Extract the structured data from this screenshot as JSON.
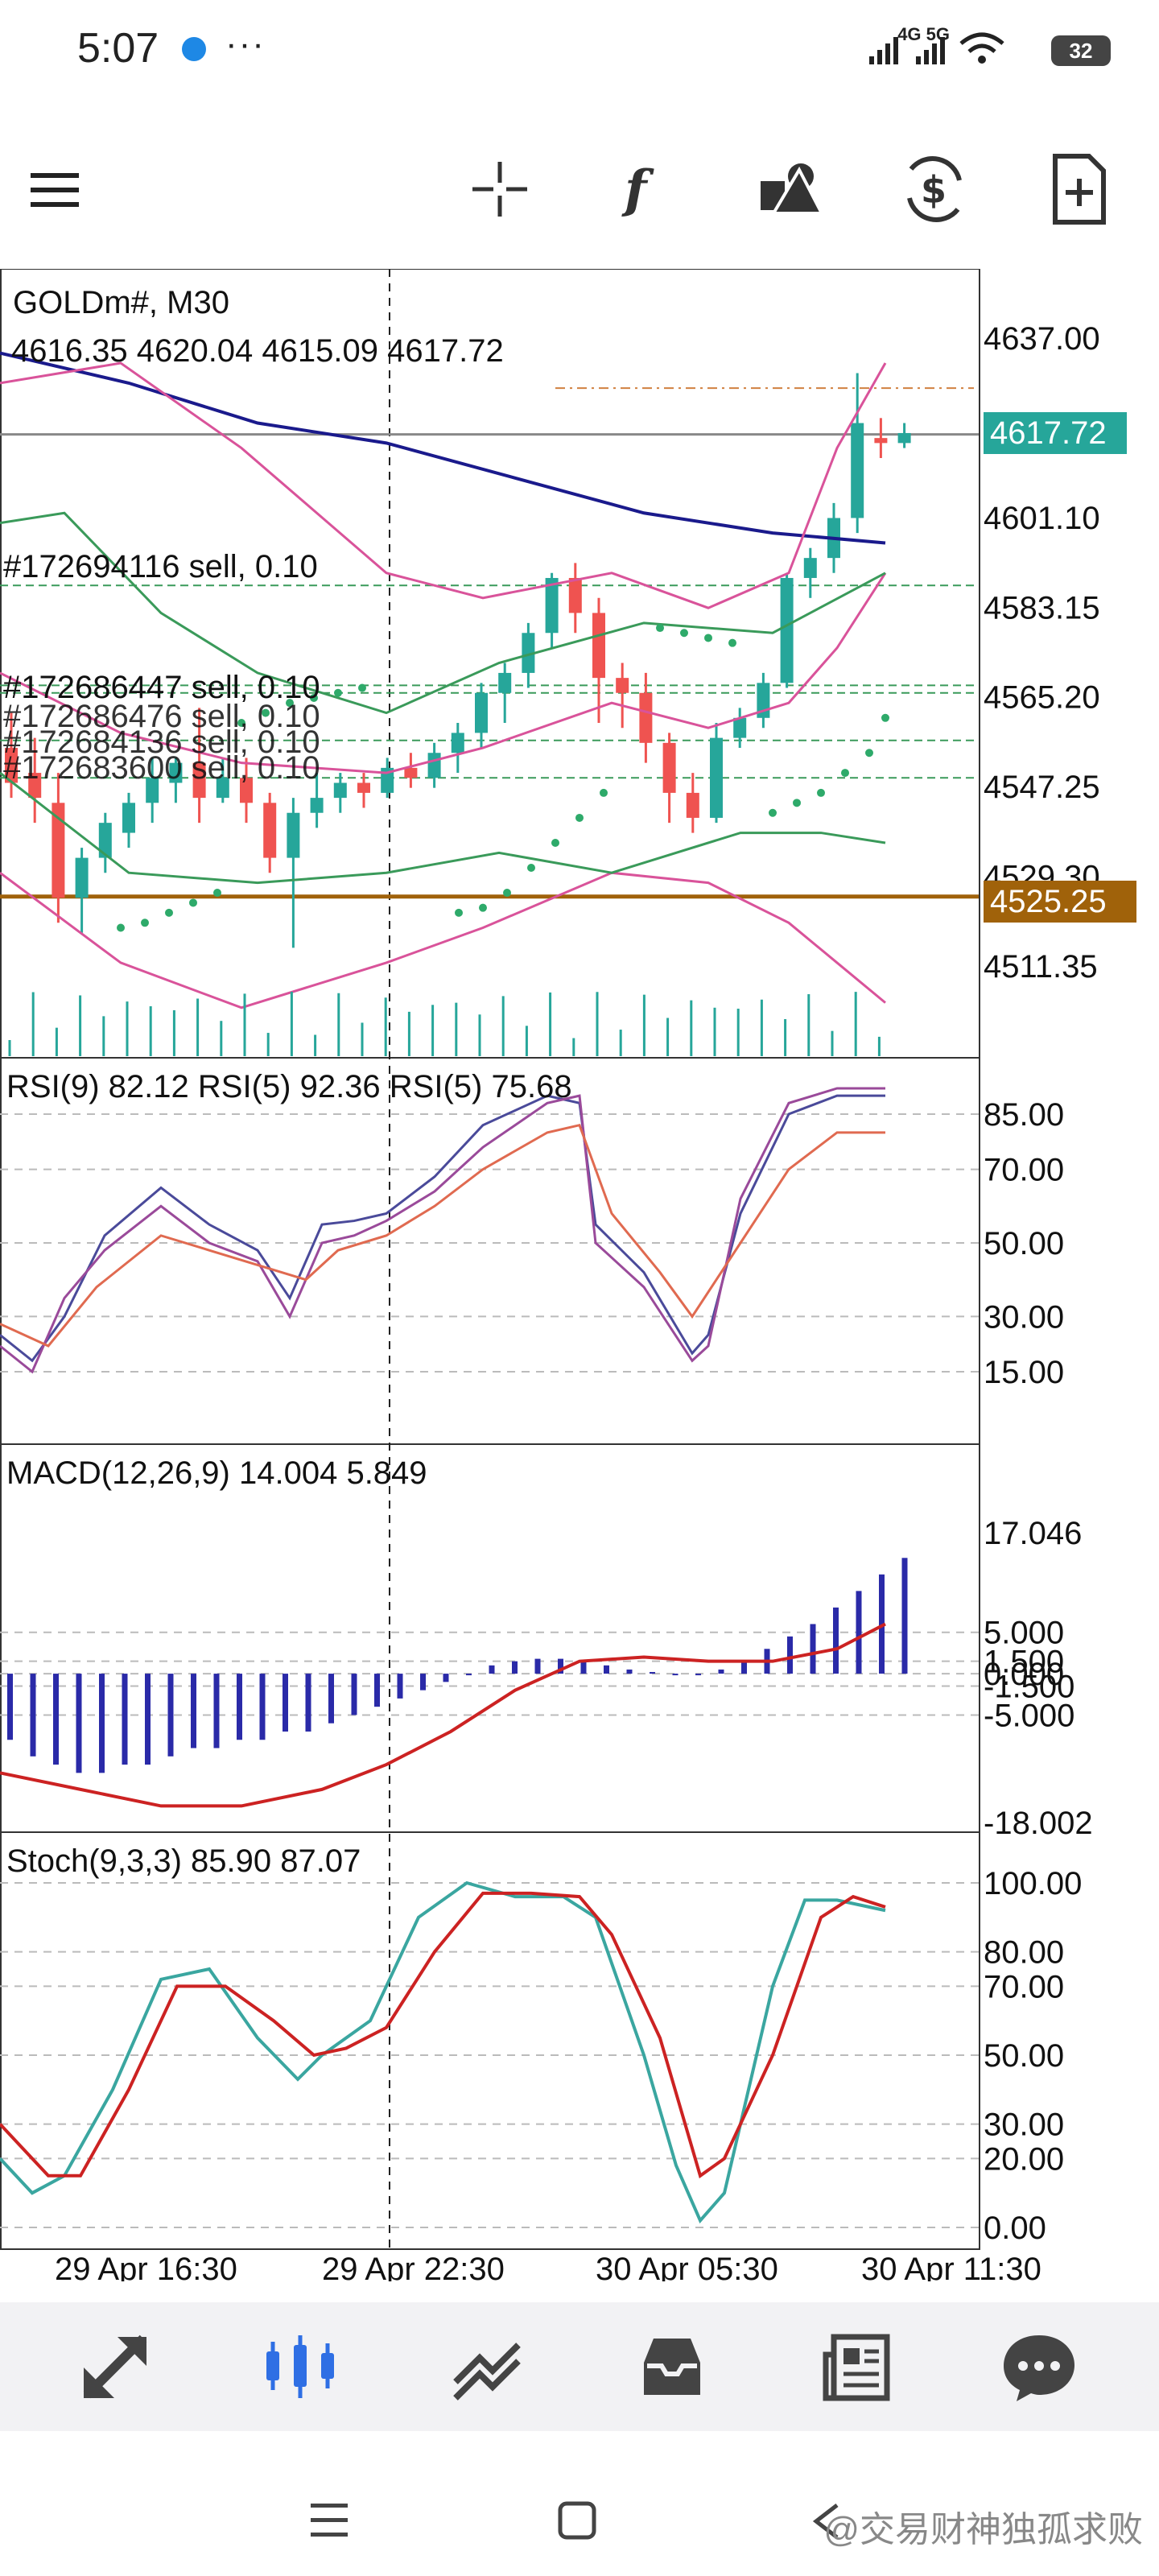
{
  "status_bar": {
    "time": "5:07",
    "network": "4G 5G",
    "battery": "32"
  },
  "toolbar": {
    "icons": [
      "menu-icon",
      "crosshair-icon",
      "indicators-icon",
      "objects-icon",
      "trade-icon",
      "new-order-icon"
    ]
  },
  "chart": {
    "symbol_line": "GOLDm#, M30",
    "ohlc_line": "4616.35 4620.04 4615.09 4617.72",
    "current_price": "4617.72",
    "line_price": "4525.25",
    "price_ticks": [
      "4637.00",
      "4601.10",
      "4583.15",
      "4565.20",
      "4547.25",
      "4529.30",
      "4511.35"
    ],
    "orders": [
      "#172694116 sell, 0.10",
      "#172686447 sell, 0.10",
      "#172686476 sell, 0.10",
      "#172684136 sell, 0.10",
      "#172683600 sell, 0.10"
    ],
    "time_labels": [
      "29 Apr 16:30",
      "29 Apr 22:30",
      "30 Apr 05:30",
      "30 Apr 11:30"
    ]
  },
  "rsi": {
    "label": "RSI(9) 82.12 RSI(5) 92.36 RSI(5) 75.68",
    "ticks": [
      "85.00",
      "70.00",
      "50.00",
      "30.00",
      "15.00"
    ]
  },
  "macd": {
    "label": "MACD(12,26,9) 14.004 5.849",
    "ticks": [
      "17.046",
      "5.000",
      "1.500",
      "0.000",
      "-1.500",
      "-5.000",
      "-18.002"
    ]
  },
  "stoch": {
    "label": "Stoch(9,3,3) 85.90 87.07",
    "ticks": [
      "100.00",
      "80.00",
      "70.00",
      "50.00",
      "30.00",
      "20.00",
      "0.00"
    ]
  },
  "bottom_nav": {
    "items": [
      "quotes-icon",
      "chart-icon",
      "trade-icon",
      "history-icon",
      "news-icon",
      "messages-icon"
    ]
  },
  "watermark": "@交易财神独孤求败",
  "colors": {
    "bull": "#26a69a",
    "bear": "#ef5350",
    "ma_blue": "#1a1a8c",
    "bb_pink": "#d9539a",
    "env_green": "#3a9a5a",
    "sar": "#2eaa6a",
    "price_tag": "#26a69a",
    "line_tag": "#a0620a"
  }
}
